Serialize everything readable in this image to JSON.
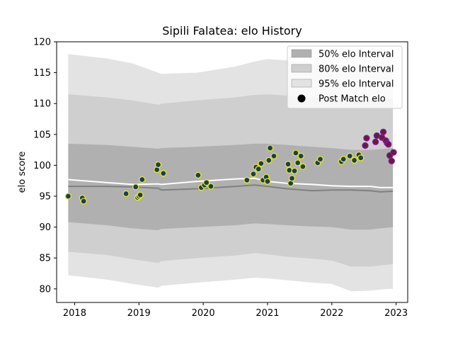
{
  "chart_data": {
    "type": "scatter",
    "title": "Sipili Falatea: elo History",
    "xlabel": "",
    "ylabel": "elo score",
    "xlim": [
      2017.72,
      2023.18
    ],
    "ylim": [
      77.8,
      120
    ],
    "x_ticks": [
      2018,
      2019,
      2020,
      2021,
      2022,
      2023
    ],
    "y_ticks": [
      80,
      85,
      90,
      95,
      100,
      105,
      110,
      115,
      120
    ],
    "grid": false,
    "legend": {
      "placement": "top-right",
      "entries": [
        "50% elo Interval",
        "80% elo Interval",
        "95% elo Interval",
        "Post Match elo"
      ]
    },
    "colors": {
      "band_50": "#b0b0b0",
      "band_80": "#cfcfcf",
      "band_95": "#e3e3e3",
      "median_line": "#808080",
      "mean_line": "#ffffff",
      "point_fill_early": "#1a3d5c",
      "point_edge_early": "#e8e820",
      "point_fill_late": "#6b1a3a",
      "point_edge_late": "#7a1f9a"
    },
    "intervals": {
      "x": [
        2017.9,
        2018.5,
        2018.9,
        2019.3,
        2019.35,
        2019.9,
        2020.5,
        2020.8,
        2021.0,
        2021.3,
        2021.7,
        2022.0,
        2022.3,
        2022.6,
        2022.75,
        2022.95
      ],
      "p95_low": [
        82.2,
        81.5,
        80.8,
        80.2,
        80.5,
        81.0,
        81.5,
        81.8,
        81.7,
        81.4,
        81.0,
        80.8,
        79.6,
        79.7,
        79.9,
        80.0
      ],
      "p80_low": [
        86.0,
        85.5,
        84.8,
        84.2,
        84.5,
        85.0,
        85.4,
        85.8,
        85.6,
        85.2,
        84.9,
        84.6,
        83.6,
        83.6,
        83.8,
        84.0
      ],
      "p50_low": [
        90.8,
        90.3,
        89.8,
        89.5,
        89.7,
        90.0,
        90.3,
        90.6,
        90.5,
        90.3,
        90.1,
        90.0,
        89.6,
        89.6,
        89.8,
        90.0
      ],
      "p50_high": [
        103.5,
        103.3,
        103.0,
        102.7,
        102.8,
        103.0,
        103.3,
        103.5,
        103.5,
        103.3,
        103.0,
        102.8,
        102.5,
        102.5,
        102.6,
        102.8
      ],
      "p80_high": [
        111.5,
        111.0,
        110.5,
        109.8,
        110.0,
        110.5,
        111.0,
        111.4,
        111.5,
        111.3,
        111.0,
        110.8,
        110.5,
        110.5,
        110.6,
        110.8
      ],
      "p95_high": [
        118.0,
        117.3,
        116.5,
        115.0,
        114.8,
        115.0,
        116.0,
        116.8,
        117.2,
        117.0,
        116.6,
        116.3,
        116.0,
        116.0,
        116.2,
        116.4
      ],
      "median": [
        96.6,
        96.6,
        96.5,
        96.3,
        96.0,
        96.2,
        96.6,
        96.8,
        96.6,
        96.2,
        95.9,
        96.0,
        96.0,
        95.9,
        95.7,
        95.8
      ],
      "mean": [
        97.7,
        97.2,
        96.9,
        97.0,
        96.9,
        97.4,
        97.8,
        97.9,
        97.4,
        97.1,
        96.9,
        96.7,
        96.6,
        96.6,
        96.4,
        96.4
      ]
    },
    "series": [
      {
        "name": "Post Match elo",
        "points": [
          [
            2017.9,
            95.0
          ],
          [
            2018.12,
            94.7
          ],
          [
            2018.14,
            94.2
          ],
          [
            2018.8,
            95.4
          ],
          [
            2018.95,
            96.5
          ],
          [
            2018.98,
            94.8
          ],
          [
            2019.0,
            95.0
          ],
          [
            2019.02,
            95.2
          ],
          [
            2019.05,
            97.7
          ],
          [
            2019.28,
            99.3
          ],
          [
            2019.3,
            100.1
          ],
          [
            2019.38,
            98.7
          ],
          [
            2019.92,
            98.4
          ],
          [
            2019.97,
            96.4
          ],
          [
            2020.02,
            96.8
          ],
          [
            2020.05,
            97.2
          ],
          [
            2020.12,
            96.6
          ],
          [
            2020.68,
            97.6
          ],
          [
            2020.78,
            98.6
          ],
          [
            2020.82,
            99.7
          ],
          [
            2020.86,
            99.4
          ],
          [
            2020.9,
            100.3
          ],
          [
            2020.93,
            97.6
          ],
          [
            2020.98,
            98.1
          ],
          [
            2021.0,
            97.4
          ],
          [
            2021.02,
            100.8
          ],
          [
            2021.04,
            102.8
          ],
          [
            2021.1,
            101.5
          ],
          [
            2021.32,
            100.2
          ],
          [
            2021.34,
            99.2
          ],
          [
            2021.36,
            97.1
          ],
          [
            2021.38,
            97.9
          ],
          [
            2021.42,
            99.1
          ],
          [
            2021.44,
            102.0
          ],
          [
            2021.47,
            100.4
          ],
          [
            2021.52,
            101.5
          ],
          [
            2021.55,
            99.8
          ],
          [
            2021.78,
            100.4
          ],
          [
            2021.82,
            101.0
          ],
          [
            2022.15,
            100.6
          ],
          [
            2022.18,
            101.0
          ],
          [
            2022.28,
            101.5
          ],
          [
            2022.35,
            100.8
          ],
          [
            2022.42,
            101.7
          ],
          [
            2022.45,
            101.2
          ],
          [
            2022.52,
            103.2
          ],
          [
            2022.54,
            104.4
          ],
          [
            2022.68,
            103.8
          ],
          [
            2022.7,
            104.8
          ],
          [
            2022.78,
            104.5
          ],
          [
            2022.8,
            105.4
          ],
          [
            2022.84,
            104.0
          ],
          [
            2022.86,
            103.6
          ],
          [
            2022.88,
            103.4
          ],
          [
            2022.9,
            101.6
          ],
          [
            2022.93,
            100.7
          ],
          [
            2022.96,
            102.1
          ]
        ]
      }
    ]
  }
}
